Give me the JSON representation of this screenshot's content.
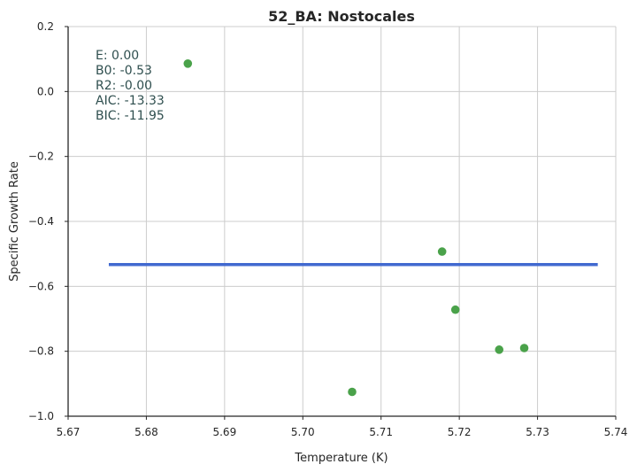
{
  "chart_data": {
    "type": "scatter",
    "title": "52_BA: Nostocales",
    "xlabel": "Temperature (K)",
    "ylabel": "Specific Growth Rate",
    "xlim": [
      5.67,
      5.74
    ],
    "ylim": [
      -1.0,
      0.2
    ],
    "xticks": [
      5.67,
      5.68,
      5.69,
      5.7,
      5.71,
      5.72,
      5.73,
      5.74
    ],
    "yticks": [
      -1.0,
      -0.8,
      -0.6,
      -0.4,
      -0.2,
      0.0,
      0.2
    ],
    "xtick_labels": [
      "5.67",
      "5.68",
      "5.69",
      "5.70",
      "5.71",
      "5.72",
      "5.73",
      "5.74"
    ],
    "ytick_labels": [
      "−1.0",
      "−0.8",
      "−0.6",
      "−0.4",
      "−0.2",
      "0.0",
      "0.2"
    ],
    "grid": true,
    "points": [
      {
        "x": 5.6853,
        "y": 0.086
      },
      {
        "x": 5.7063,
        "y": -0.925
      },
      {
        "x": 5.7178,
        "y": -0.493
      },
      {
        "x": 5.7195,
        "y": -0.672
      },
      {
        "x": 5.7251,
        "y": -0.795
      },
      {
        "x": 5.7283,
        "y": -0.79
      }
    ],
    "fit_line": {
      "x": [
        5.6752,
        5.7377
      ],
      "y": [
        -0.533,
        -0.533
      ]
    },
    "point_color": "#4aa24a",
    "line_color": "#4169d0",
    "annotations": [
      "E:  0.00",
      "B0:  -0.53",
      "R2:  -0.00",
      "AIC: -13.33",
      "BIC: -11.95"
    ]
  }
}
